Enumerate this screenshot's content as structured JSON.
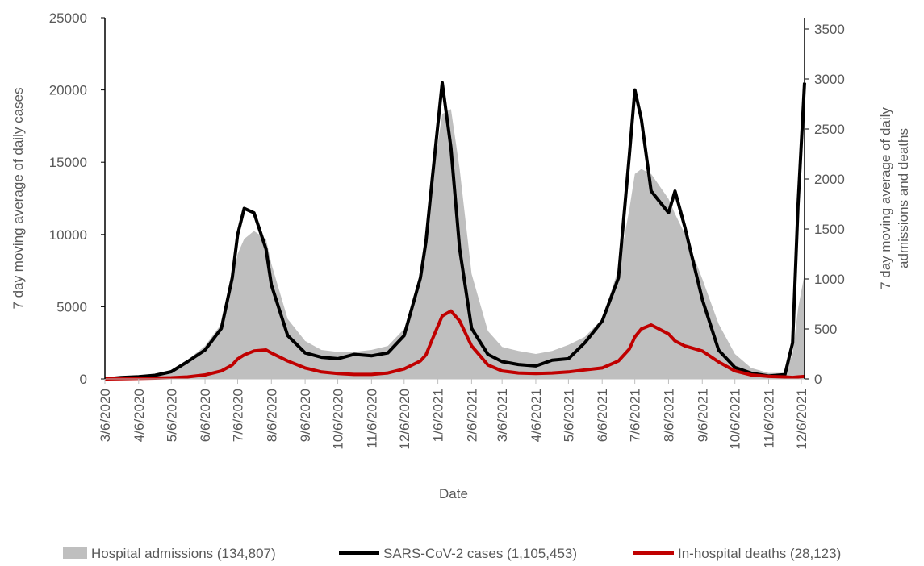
{
  "chart_data": {
    "type": "area-line",
    "x_label": "Date",
    "y_label": "7 day moving average of daily cases",
    "y2_label": [
      "7 day moving average of daily",
      "admissions and deaths"
    ],
    "x": [
      "3/6/2020",
      "3/21/2020",
      "4/6/2020",
      "4/21/2020",
      "5/6/2020",
      "5/21/2020",
      "6/6/2020",
      "6/21/2020",
      "7/1/2020",
      "7/6/2020",
      "7/12/2020",
      "7/21/2020",
      "8/1/2020",
      "8/6/2020",
      "8/21/2020",
      "9/6/2020",
      "9/21/2020",
      "10/6/2020",
      "10/21/2020",
      "11/6/2020",
      "11/21/2020",
      "12/6/2020",
      "12/21/2020",
      "12/26/2020",
      "1/1/2021",
      "1/10/2021",
      "1/18/2021",
      "1/26/2021",
      "2/6/2021",
      "2/21/2021",
      "3/6/2021",
      "3/21/2021",
      "4/6/2021",
      "4/21/2021",
      "5/6/2021",
      "5/21/2021",
      "6/6/2021",
      "6/21/2021",
      "7/1/2021",
      "7/6/2021",
      "7/12/2021",
      "7/21/2021",
      "8/6/2021",
      "8/12/2021",
      "8/21/2021",
      "9/6/2021",
      "9/21/2021",
      "10/6/2021",
      "10/21/2021",
      "11/6/2021",
      "11/21/2021",
      "11/28/2021",
      "12/3/2021",
      "12/9/2021"
    ],
    "series": [
      {
        "name": "Hospital admissions (134,807)",
        "kind": "area",
        "axis": "y2",
        "color": "#bfbfbf",
        "values": [
          0,
          10,
          25,
          40,
          80,
          190,
          330,
          550,
          1000,
          1250,
          1400,
          1480,
          1400,
          1150,
          600,
          380,
          290,
          270,
          270,
          290,
          330,
          500,
          1000,
          1300,
          2000,
          2650,
          2700,
          2100,
          1050,
          480,
          320,
          280,
          250,
          280,
          340,
          420,
          600,
          1100,
          1700,
          2050,
          2100,
          2050,
          1800,
          1650,
          1450,
          1000,
          550,
          250,
          110,
          60,
          60,
          250,
          700,
          1050
        ]
      },
      {
        "name": "SARS-CoV-2 cases (1,105,453)",
        "kind": "line",
        "axis": "y",
        "color": "#000000",
        "values": [
          0,
          100,
          150,
          250,
          500,
          1200,
          2000,
          3500,
          7000,
          10000,
          11800,
          11500,
          9000,
          6500,
          3000,
          1800,
          1500,
          1400,
          1700,
          1600,
          1800,
          3000,
          7000,
          9500,
          14000,
          20500,
          16000,
          9000,
          3500,
          1700,
          1200,
          1000,
          900,
          1300,
          1400,
          2500,
          4000,
          7000,
          15500,
          20000,
          18000,
          13000,
          11500,
          13000,
          10500,
          5500,
          2000,
          800,
          400,
          200,
          300,
          2500,
          12000,
          20500
        ]
      },
      {
        "name": "In-hospital deaths (28,123)",
        "kind": "line",
        "axis": "y2",
        "color": "#c00000",
        "values": [
          0,
          2,
          5,
          8,
          12,
          20,
          40,
          80,
          140,
          200,
          240,
          280,
          290,
          260,
          180,
          110,
          70,
          55,
          45,
          45,
          60,
          100,
          180,
          240,
          400,
          630,
          680,
          580,
          330,
          140,
          80,
          60,
          55,
          60,
          70,
          90,
          110,
          180,
          300,
          420,
          500,
          540,
          450,
          380,
          330,
          280,
          170,
          80,
          40,
          25,
          20,
          15,
          20,
          25
        ]
      }
    ],
    "xlim": [
      "3/6/2020",
      "12/9/2021"
    ],
    "xticks": [
      "3/6/2020",
      "4/6/2020",
      "5/6/2020",
      "6/6/2020",
      "7/6/2020",
      "8/6/2020",
      "9/6/2020",
      "10/6/2020",
      "11/6/2020",
      "12/6/2020",
      "1/6/2021",
      "2/6/2021",
      "3/6/2021",
      "4/6/2021",
      "5/6/2021",
      "6/6/2021",
      "7/6/2021",
      "8/6/2021",
      "9/6/2021",
      "10/6/2021",
      "11/6/2021",
      "12/6/2021"
    ],
    "ylim": [
      0,
      25000
    ],
    "yticks": [
      0,
      5000,
      10000,
      15000,
      20000,
      25000
    ],
    "y2lim": [
      0,
      3613
    ],
    "y2ticks": [
      0,
      500,
      1000,
      1500,
      2000,
      2500,
      3000,
      3500
    ],
    "legend": "bottom"
  }
}
